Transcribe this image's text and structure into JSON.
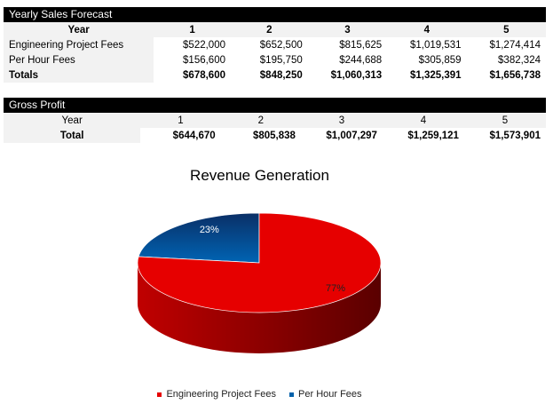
{
  "sales": {
    "title": "Yearly Sales Forecast",
    "year_label": "Year",
    "years": [
      "1",
      "2",
      "3",
      "4",
      "5"
    ],
    "rows": [
      {
        "label": "Engineering Project Fees",
        "values": [
          "$522,000",
          "$652,500",
          "$815,625",
          "$1,019,531",
          "$1,274,414"
        ]
      },
      {
        "label": "Per Hour Fees",
        "values": [
          "$156,600",
          "$195,750",
          "$244,688",
          "$305,859",
          "$382,324"
        ]
      },
      {
        "label": "Totals",
        "values": [
          "$678,600",
          "$848,250",
          "$1,060,313",
          "$1,325,391",
          "$1,656,738"
        ]
      }
    ]
  },
  "gross": {
    "title": "Gross Profit",
    "year_label": "Year",
    "years": [
      "1",
      "2",
      "3",
      "4",
      "5"
    ],
    "rows": [
      {
        "label": "Total",
        "values": [
          "$644,670",
          "$805,838",
          "$1,007,297",
          "$1,259,121",
          "$1,573,901"
        ]
      }
    ]
  },
  "chart_data": {
    "type": "pie",
    "title": "Revenue Generation",
    "style": "3d",
    "slices": [
      {
        "name": "Engineering Project Fees",
        "value": 77,
        "label": "77%",
        "color": "#e60000"
      },
      {
        "name": "Per Hour Fees",
        "value": 23,
        "label": "23%",
        "color": "#0060aa"
      }
    ],
    "legend": "bottom"
  }
}
